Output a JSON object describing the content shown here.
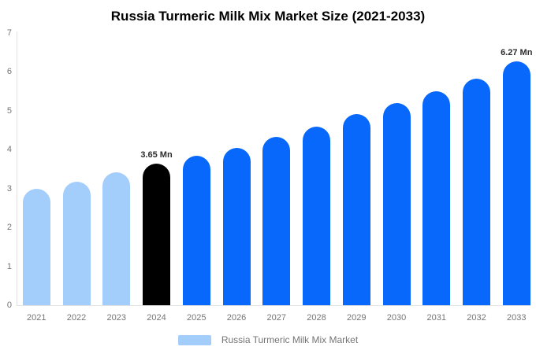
{
  "chart_data": {
    "type": "bar",
    "title": "Russia Turmeric Milk Mix Market Size (2021-2033)",
    "categories": [
      "2021",
      "2022",
      "2023",
      "2024",
      "2025",
      "2026",
      "2027",
      "2028",
      "2029",
      "2030",
      "2031",
      "2032",
      "2033"
    ],
    "values": [
      3.0,
      3.18,
      3.42,
      3.65,
      3.84,
      4.04,
      4.33,
      4.6,
      4.92,
      5.19,
      5.5,
      5.83,
      6.27
    ],
    "bar_color_keys": [
      "historical",
      "historical",
      "historical",
      "base_year",
      "forecast",
      "forecast",
      "forecast",
      "forecast",
      "forecast",
      "forecast",
      "forecast",
      "forecast",
      "forecast"
    ],
    "annotations": {
      "3": "3.65 Mn",
      "12": "6.27 Mn"
    },
    "xlabel": "",
    "ylabel": "",
    "ylim": [
      0,
      7
    ],
    "yticks": [
      0,
      1,
      2,
      3,
      4,
      5,
      6,
      7
    ],
    "grid": false,
    "legend_position": "bottom",
    "legend_label": "Russia Turmeric Milk Mix Market",
    "colors": {
      "historical": "#a3cdfb",
      "base_year": "#000000",
      "forecast": "#0768fb",
      "axis_line": "#e2e2e2",
      "tick_text": "#757575",
      "annotation_text": "#2d2d2d",
      "title_text": "#000000"
    }
  }
}
